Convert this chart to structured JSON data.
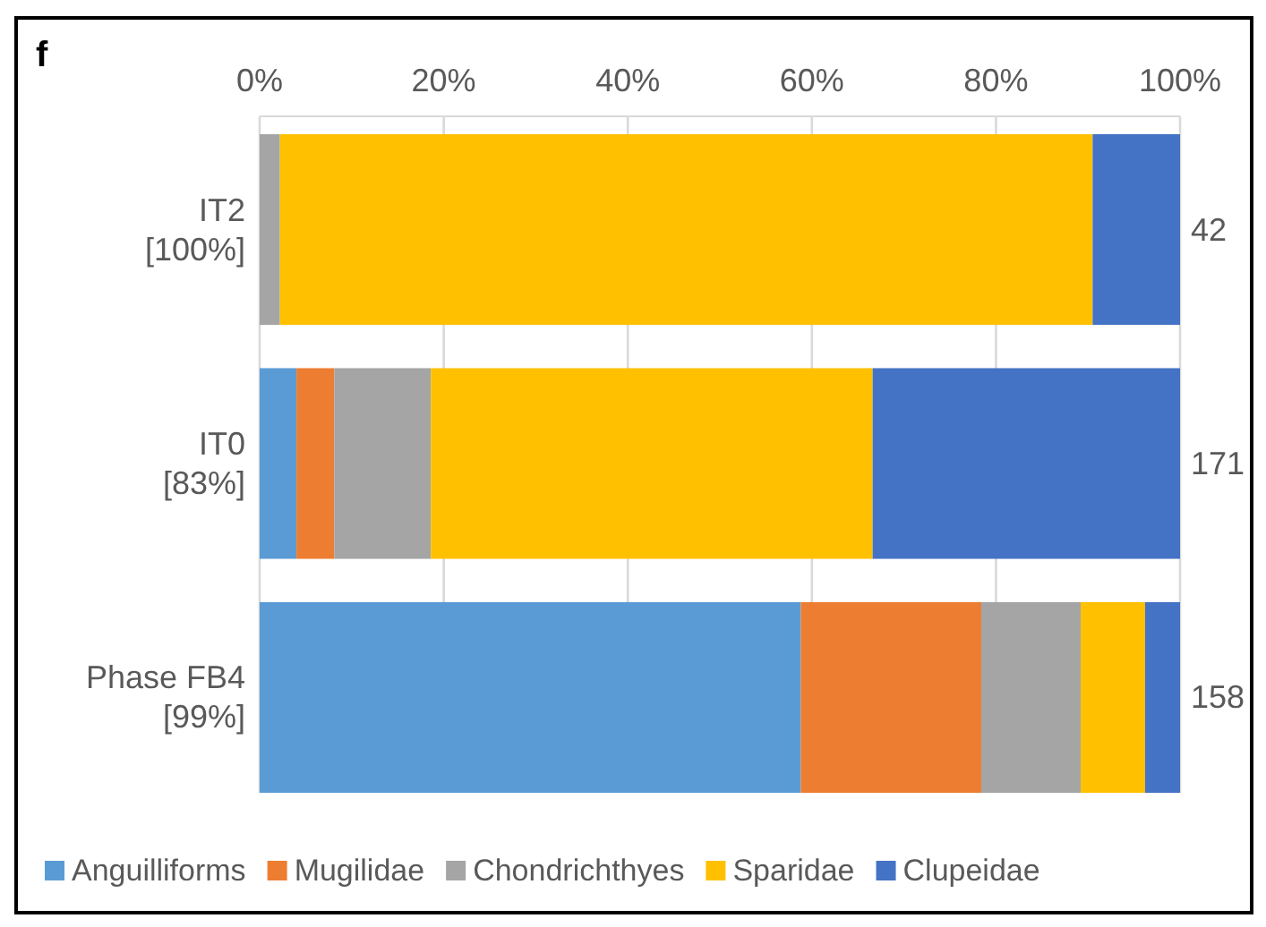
{
  "chart_data": {
    "type": "bar",
    "title": "f",
    "orientation": "horizontal",
    "stacked": true,
    "categories": [
      "IT2\n[100%]",
      "IT0\n[83%]",
      "Phase FB4\n[99%]"
    ],
    "series": [
      {
        "name": "Anguilliforms",
        "color": "#5b9bd5",
        "values": [
          0,
          4.0,
          58.8
        ]
      },
      {
        "name": "Mugilidae",
        "color": "#ed7d31",
        "values": [
          0,
          4.1,
          19.6
        ]
      },
      {
        "name": "Chondrichthyes",
        "color": "#a5a5a5",
        "values": [
          2.2,
          10.5,
          10.8
        ]
      },
      {
        "name": "Sparidae",
        "color": "#ffc000",
        "values": [
          88.3,
          48.0,
          7.0
        ]
      },
      {
        "name": "Clupeidae",
        "color": "#4472c4",
        "values": [
          9.5,
          33.4,
          3.8
        ]
      }
    ],
    "xlim": [
      0,
      100
    ],
    "xticks": [
      {
        "value": 0,
        "label": "0%"
      },
      {
        "value": 20,
        "label": "20%"
      },
      {
        "value": 40,
        "label": "40%"
      },
      {
        "value": 60,
        "label": "60%"
      },
      {
        "value": 80,
        "label": "80%"
      },
      {
        "value": 100,
        "label": "100%"
      }
    ],
    "grid": "x",
    "legend": "bottom",
    "annotations": [
      "42",
      "171",
      "158"
    ]
  }
}
